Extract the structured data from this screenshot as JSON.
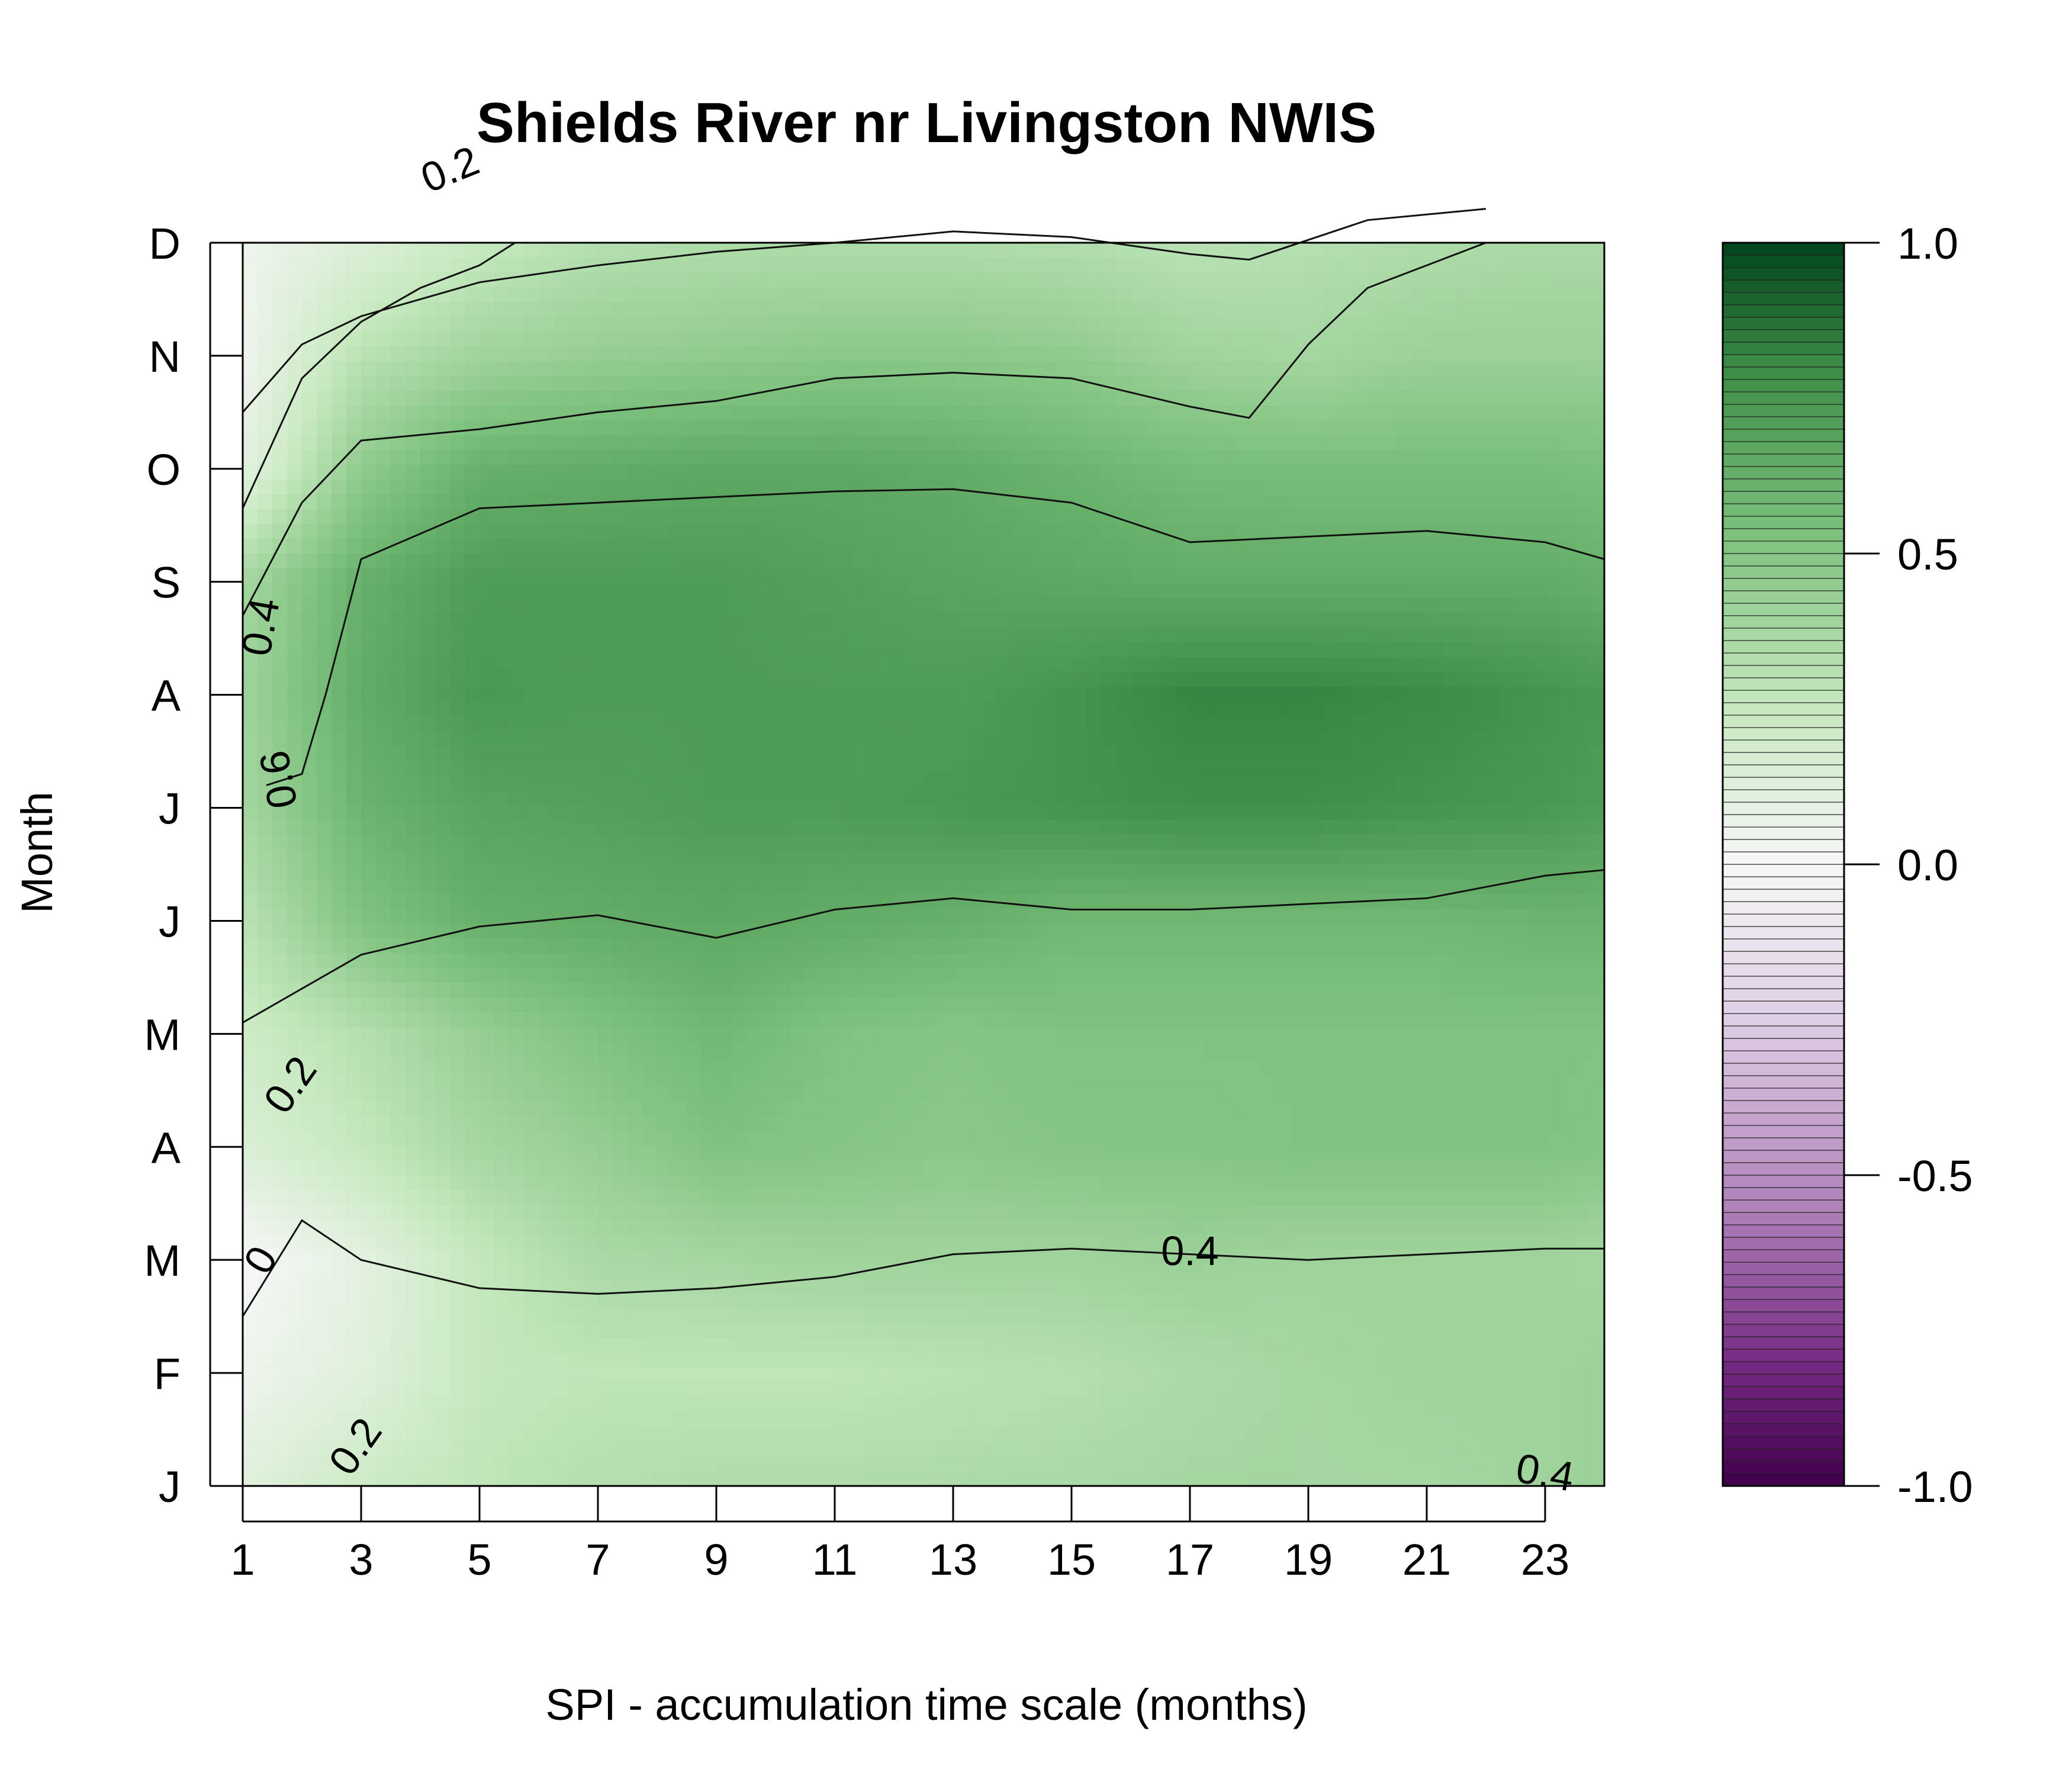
{
  "chart_data": {
    "type": "heatmap",
    "title": "Shields River nr Livingston NWIS",
    "xlabel": "SPI - accumulation time scale (months)",
    "ylabel": "Month",
    "x_range": [
      1,
      24
    ],
    "x_ticks": [
      "1",
      "3",
      "5",
      "7",
      "9",
      "11",
      "13",
      "15",
      "17",
      "19",
      "21",
      "23"
    ],
    "y_ticks": [
      "J",
      "F",
      "M",
      "A",
      "M",
      "J",
      "J",
      "A",
      "S",
      "O",
      "N",
      "D"
    ],
    "x_values": [
      1,
      3,
      5,
      7,
      9,
      11,
      13,
      15,
      17,
      19,
      21,
      23,
      24
    ],
    "z": [
      [
        0.12,
        0.22,
        0.28,
        0.32,
        0.34,
        0.34,
        0.35,
        0.36,
        0.38,
        0.38,
        0.38,
        0.4,
        0.42
      ],
      [
        0.05,
        0.12,
        0.26,
        0.28,
        0.28,
        0.28,
        0.3,
        0.32,
        0.35,
        0.38,
        0.4,
        0.4,
        0.42
      ],
      [
        0.0,
        0.1,
        0.26,
        0.36,
        0.38,
        0.4,
        0.4,
        0.4,
        0.42,
        0.4,
        0.4,
        0.4,
        0.38
      ],
      [
        0.15,
        0.26,
        0.38,
        0.44,
        0.52,
        0.5,
        0.48,
        0.5,
        0.5,
        0.52,
        0.52,
        0.52,
        0.5
      ],
      [
        0.22,
        0.32,
        0.44,
        0.52,
        0.58,
        0.52,
        0.5,
        0.52,
        0.52,
        0.52,
        0.52,
        0.52,
        0.52
      ],
      [
        0.3,
        0.52,
        0.62,
        0.64,
        0.66,
        0.64,
        0.62,
        0.58,
        0.58,
        0.58,
        0.58,
        0.6,
        0.6
      ],
      [
        0.38,
        0.6,
        0.68,
        0.7,
        0.72,
        0.72,
        0.74,
        0.76,
        0.78,
        0.78,
        0.76,
        0.74,
        0.72
      ],
      [
        0.4,
        0.64,
        0.74,
        0.72,
        0.72,
        0.72,
        0.72,
        0.76,
        0.82,
        0.82,
        0.8,
        0.76,
        0.74
      ],
      [
        0.38,
        0.62,
        0.72,
        0.72,
        0.72,
        0.7,
        0.68,
        0.66,
        0.64,
        0.64,
        0.64,
        0.64,
        0.62
      ],
      [
        0.1,
        0.46,
        0.62,
        0.64,
        0.66,
        0.66,
        0.64,
        0.6,
        0.56,
        0.55,
        0.55,
        0.55,
        0.54
      ],
      [
        0.05,
        0.3,
        0.4,
        0.44,
        0.46,
        0.48,
        0.48,
        0.46,
        0.4,
        0.38,
        0.42,
        0.42,
        0.42
      ],
      [
        0.05,
        0.14,
        0.25,
        0.32,
        0.34,
        0.34,
        0.34,
        0.33,
        0.3,
        0.32,
        0.34,
        0.36,
        0.36
      ]
    ],
    "contour_labels": [
      "0.2",
      "0.4",
      "0.6",
      "0.2",
      "0",
      "0.2",
      "0.4",
      "0.4"
    ],
    "colorbar": {
      "range": [
        -1.0,
        1.0
      ],
      "ticks": [
        "1.0",
        "0.5",
        "0.0",
        "-0.5",
        "-1.0"
      ],
      "colors": {
        "low": "#40004b",
        "mid": "#f7f7f7",
        "high": "#00441b"
      }
    },
    "legend_position": "right",
    "grid": false
  }
}
